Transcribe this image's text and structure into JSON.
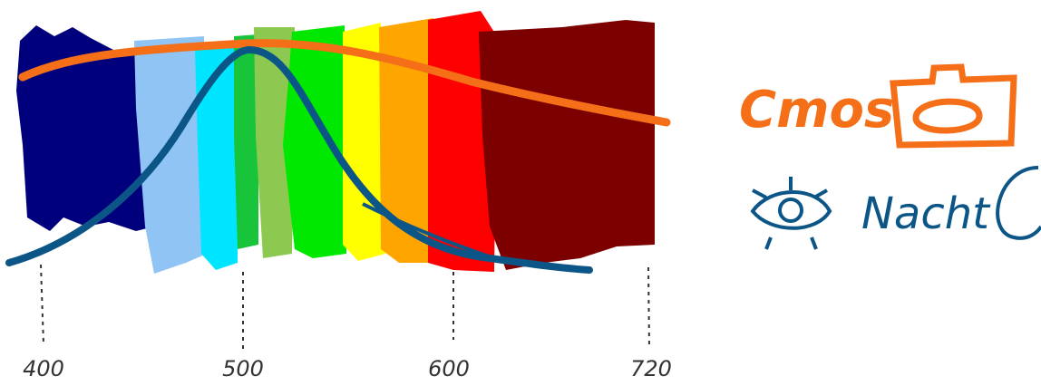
{
  "axis": {
    "ticks": [
      "400",
      "500",
      "600",
      "720"
    ]
  },
  "legend": {
    "cmos": "Cmos",
    "night": "Nacht"
  }
}
